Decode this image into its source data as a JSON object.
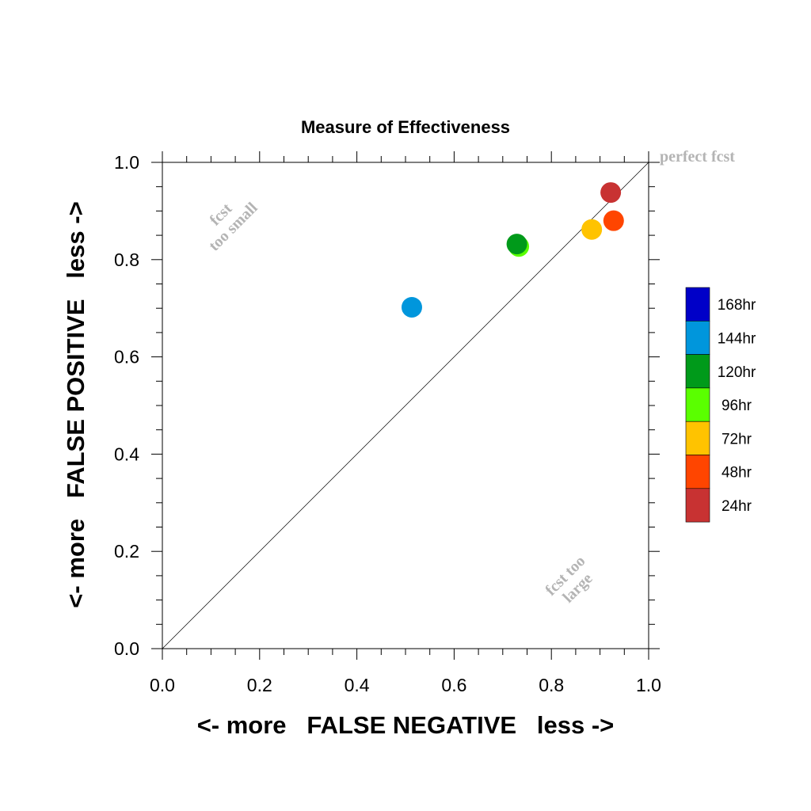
{
  "chart_data": {
    "type": "scatter",
    "title": "Measure of Effectiveness",
    "xlabel": "<- more   FALSE NEGATIVE   less ->",
    "ylabel": "<- more   FALSE POSITIVE   less ->",
    "xlim": [
      0.0,
      1.0
    ],
    "ylim": [
      0.0,
      1.0
    ],
    "x_ticks": [
      "0.0",
      "0.2",
      "0.4",
      "0.6",
      "0.8",
      "1.0"
    ],
    "y_ticks": [
      "0.0",
      "0.2",
      "0.4",
      "0.6",
      "0.8",
      "1.0"
    ],
    "grid": false,
    "diagonal_label": "perfect fcst",
    "region_labels": {
      "upper_left": [
        "fcst",
        "too small"
      ],
      "lower_right": [
        "fcst too",
        "large"
      ]
    },
    "legend_position": "right",
    "series": [
      {
        "name": "168hr",
        "color": "#0000c8",
        "points": []
      },
      {
        "name": "144hr",
        "color": "#0096dc",
        "points": [
          [
            0.513,
            0.702
          ]
        ]
      },
      {
        "name": "120hr",
        "color": "#009a1a",
        "points": [
          [
            0.729,
            0.832
          ]
        ]
      },
      {
        "name": "96hr",
        "color": "#5aff00",
        "points": [
          [
            0.733,
            0.827
          ]
        ]
      },
      {
        "name": "72hr",
        "color": "#ffc300",
        "points": [
          [
            0.883,
            0.862
          ]
        ]
      },
      {
        "name": "48hr",
        "color": "#ff4500",
        "points": [
          [
            0.928,
            0.88
          ]
        ]
      },
      {
        "name": "24hr",
        "color": "#c83232",
        "points": [
          [
            0.922,
            0.938
          ]
        ]
      }
    ]
  }
}
